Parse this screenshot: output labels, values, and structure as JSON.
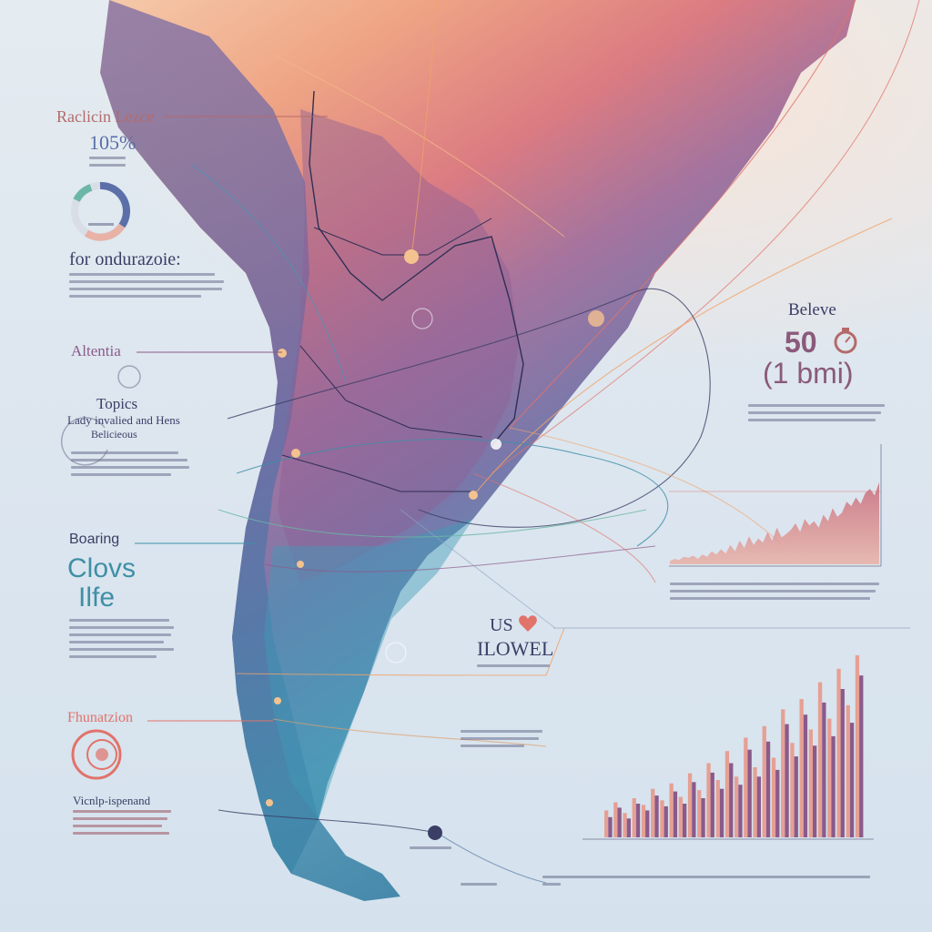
{
  "colors": {
    "accent_purple": "#8a5a8a",
    "accent_coral": "#e1736a",
    "accent_teal": "#3f8fa6",
    "accent_orange": "#f0a46a",
    "ink_dark": "#3b3f66",
    "label_rose": "#b46a6a"
  },
  "left_panel": {
    "heading_1": "Raclicin Lezce",
    "stat_1": "105%",
    "heading_2": "for ondurazoie:",
    "heading_3": "Altentia",
    "subheading_3": "Topics",
    "subheading_3b": "Lady invalied and Hens",
    "subheading_3c": "Belicieous",
    "heading_4": "Boaring",
    "logo_line_1": "Clovs",
    "logo_line_2": "Ilfe",
    "heading_5": "Fhunatzion",
    "subheading_5": "Vicnlp-ispenand"
  },
  "right_panel": {
    "heading_1": "Beleve",
    "big_number": "50",
    "big_unit": "(1 bmi)",
    "brand_line_1": "US",
    "brand_line_2": "ILOWEL"
  },
  "icons": [
    "donut-icon",
    "ring-icon",
    "heart-icon",
    "stopwatch-icon",
    "circle-badge-icon"
  ],
  "chart_data": [
    {
      "type": "area",
      "title": "",
      "values": [
        3,
        5,
        4,
        7,
        6,
        8,
        5,
        9,
        7,
        12,
        9,
        14,
        10,
        18,
        12,
        22,
        15,
        26,
        18,
        24,
        20,
        30,
        22,
        34,
        25,
        28,
        32,
        38,
        30,
        42,
        36,
        40,
        34,
        46,
        40,
        52,
        44,
        48,
        58,
        54,
        62,
        56,
        66,
        70,
        64,
        76
      ]
    },
    {
      "type": "bar",
      "title": "",
      "series": [
        {
          "name": "",
          "values": [
            40,
            52,
            36,
            58,
            48,
            72,
            55,
            80,
            60,
            95,
            70,
            110,
            85,
            128,
            90,
            148,
            104,
            165,
            118,
            190,
            140,
            205,
            160,
            230,
            176,
            250,
            196,
            270
          ]
        },
        {
          "name": "",
          "values": [
            30,
            44,
            28,
            50,
            40,
            62,
            46,
            68,
            50,
            82,
            58,
            96,
            72,
            110,
            78,
            130,
            90,
            142,
            100,
            168,
            120,
            182,
            136,
            200,
            150,
            220,
            170,
            240
          ]
        }
      ]
    }
  ]
}
